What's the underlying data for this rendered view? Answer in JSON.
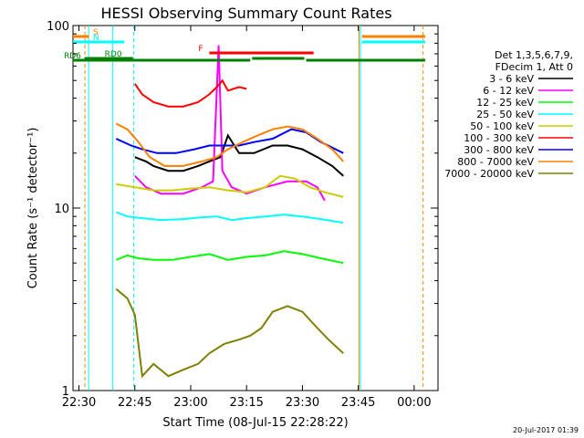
{
  "chart_data": {
    "type": "line",
    "title": "HESSI Observing Summary Count Rates",
    "xlabel": "Start Time (08-Jul-15 22:28:22)",
    "ylabel": "Count Rate (s⁻¹ detector⁻¹)",
    "ylim": [
      1,
      100
    ],
    "yscale": "log",
    "xlim_minutes": [
      -1.6,
      96.4
    ],
    "x_ticks": [
      {
        "label": "22:30",
        "t": 0
      },
      {
        "label": "22:45",
        "t": 15
      },
      {
        "label": "23:00",
        "t": 30
      },
      {
        "label": "23:15",
        "t": 45
      },
      {
        "label": "23:30",
        "t": 60
      },
      {
        "label": "23:45",
        "t": 75
      },
      {
        "label": "00:00",
        "t": 90
      }
    ],
    "y_ticks": [
      {
        "label": "1",
        "v": 1
      },
      {
        "label": "10",
        "v": 10
      },
      {
        "label": "100",
        "v": 100
      }
    ],
    "legend": {
      "header": [
        "Det 1,3,5,6,7,9,",
        "FDecim 1, Att 0"
      ],
      "position": "right"
    },
    "series": [
      {
        "name": "3 - 6 keV",
        "color": "#000000",
        "points": [
          [
            15,
            19
          ],
          [
            18,
            18
          ],
          [
            20,
            17
          ],
          [
            24,
            16
          ],
          [
            28,
            16
          ],
          [
            32,
            17
          ],
          [
            35,
            18
          ],
          [
            38,
            19
          ],
          [
            40,
            25
          ],
          [
            43,
            20
          ],
          [
            47,
            20
          ],
          [
            52,
            22
          ],
          [
            56,
            22
          ],
          [
            60,
            21
          ],
          [
            64,
            19
          ],
          [
            68,
            17
          ],
          [
            71,
            15
          ]
        ]
      },
      {
        "name": "6 - 12 keV",
        "color": "#ff00ff",
        "points": [
          [
            15,
            15
          ],
          [
            18,
            13
          ],
          [
            22,
            12
          ],
          [
            28,
            12
          ],
          [
            33,
            13
          ],
          [
            36,
            14
          ],
          [
            37.5,
            78
          ],
          [
            38.5,
            16
          ],
          [
            41,
            13
          ],
          [
            45,
            12
          ],
          [
            50,
            13
          ],
          [
            56,
            14
          ],
          [
            61,
            14
          ],
          [
            64,
            13
          ],
          [
            66,
            11
          ]
        ]
      },
      {
        "name": "12 - 25 keV",
        "color": "#00ff00",
        "points": [
          [
            10,
            5.2
          ],
          [
            13,
            5.5
          ],
          [
            16,
            5.3
          ],
          [
            20,
            5.2
          ],
          [
            25,
            5.2
          ],
          [
            30,
            5.4
          ],
          [
            35,
            5.6
          ],
          [
            40,
            5.2
          ],
          [
            45,
            5.4
          ],
          [
            50,
            5.5
          ],
          [
            55,
            5.8
          ],
          [
            60,
            5.6
          ],
          [
            65,
            5.3
          ],
          [
            71,
            5.0
          ]
        ]
      },
      {
        "name": "25 - 50 keV",
        "color": "#00ffff",
        "points": [
          [
            10,
            9.5
          ],
          [
            13,
            9.0
          ],
          [
            17,
            8.8
          ],
          [
            22,
            8.6
          ],
          [
            28,
            8.7
          ],
          [
            33,
            8.9
          ],
          [
            37,
            9.0
          ],
          [
            41,
            8.6
          ],
          [
            45,
            8.8
          ],
          [
            50,
            9.0
          ],
          [
            55,
            9.2
          ],
          [
            60,
            9.0
          ],
          [
            65,
            8.7
          ],
          [
            71,
            8.3
          ]
        ]
      },
      {
        "name": "50 - 100 keV",
        "color": "#cccc00",
        "points": [
          [
            10,
            13.5
          ],
          [
            15,
            13
          ],
          [
            20,
            12.5
          ],
          [
            25,
            12.5
          ],
          [
            30,
            12.8
          ],
          [
            35,
            13
          ],
          [
            40,
            12.5
          ],
          [
            45,
            12.2
          ],
          [
            50,
            13
          ],
          [
            54,
            15
          ],
          [
            58,
            14.5
          ],
          [
            62,
            13
          ],
          [
            66,
            12.2
          ],
          [
            71,
            11.5
          ]
        ]
      },
      {
        "name": "100 - 300 keV",
        "color": "#ff0000",
        "points": [
          [
            15,
            48
          ],
          [
            17,
            42
          ],
          [
            20,
            38
          ],
          [
            24,
            36
          ],
          [
            28,
            36
          ],
          [
            32,
            38
          ],
          [
            35,
            42
          ],
          [
            37,
            46
          ],
          [
            38.5,
            50
          ],
          [
            40,
            44
          ],
          [
            43,
            46
          ],
          [
            45,
            45
          ]
        ]
      },
      {
        "name": "300 - 800 keV",
        "color": "#0000ff",
        "points": [
          [
            10,
            24
          ],
          [
            14,
            22
          ],
          [
            17,
            21
          ],
          [
            21,
            20
          ],
          [
            26,
            20
          ],
          [
            31,
            21
          ],
          [
            35,
            22
          ],
          [
            39,
            22
          ],
          [
            43,
            22
          ],
          [
            47,
            23
          ],
          [
            52,
            24
          ],
          [
            57,
            27
          ],
          [
            61,
            26
          ],
          [
            65,
            23
          ],
          [
            71,
            20
          ]
        ]
      },
      {
        "name": "800 - 7000 keV",
        "color": "#ff8000",
        "points": [
          [
            10,
            29
          ],
          [
            13,
            27
          ],
          [
            16,
            23
          ],
          [
            19,
            19
          ],
          [
            23,
            17
          ],
          [
            28,
            17
          ],
          [
            33,
            18
          ],
          [
            37,
            19
          ],
          [
            40,
            21
          ],
          [
            44,
            23
          ],
          [
            48,
            25
          ],
          [
            52,
            27
          ],
          [
            56,
            28
          ],
          [
            60,
            27
          ],
          [
            64,
            24
          ],
          [
            68,
            21
          ],
          [
            71,
            18
          ]
        ]
      },
      {
        "name": "7000 - 20000 keV",
        "color": "#808000",
        "points": [
          [
            10,
            3.6
          ],
          [
            13,
            3.2
          ],
          [
            15,
            2.6
          ],
          [
            17,
            1.2
          ],
          [
            20,
            1.4
          ],
          [
            24,
            1.2
          ],
          [
            28,
            1.3
          ],
          [
            32,
            1.4
          ],
          [
            35,
            1.6
          ],
          [
            39,
            1.8
          ],
          [
            43,
            1.9
          ],
          [
            46,
            2.0
          ],
          [
            49,
            2.2
          ],
          [
            52,
            2.7
          ],
          [
            56,
            2.9
          ],
          [
            60,
            2.7
          ],
          [
            64,
            2.2
          ],
          [
            67,
            1.9
          ],
          [
            71,
            1.6
          ]
        ]
      }
    ],
    "flag_bars": [
      {
        "name": "S",
        "color": "#ff8000",
        "ranges": [
          [
            -1.6,
            2.7
          ],
          [
            76,
            93
          ]
        ]
      },
      {
        "name": "N",
        "color": "#00ffff",
        "ranges": [
          [
            -1.6,
            12.2
          ],
          [
            76,
            93
          ]
        ]
      },
      {
        "name": "F",
        "color": "#ff0000",
        "ranges": [
          [
            35,
            63
          ]
        ]
      },
      {
        "name": "RD0",
        "color": "#008000",
        "ranges": [
          [
            1.5,
            14.5
          ],
          [
            46.5,
            60.5
          ]
        ]
      },
      {
        "name": "RD6",
        "color": "#008000",
        "ranges": [
          [
            -1.6,
            46
          ],
          [
            61,
            93
          ]
        ]
      }
    ],
    "vertical_markers": [
      {
        "t": 1.6,
        "color": "#ff8000",
        "style": "dashed"
      },
      {
        "t": 2.6,
        "color": "#00ffff",
        "style": "solid"
      },
      {
        "t": 9.1,
        "color": "#00ffff",
        "style": "solid"
      },
      {
        "t": 14.7,
        "color": "#00ffff",
        "style": "dashed"
      },
      {
        "t": 75.6,
        "color": "#00ffff",
        "style": "solid"
      },
      {
        "t": 75.2,
        "color": "#ff8000",
        "style": "solid"
      },
      {
        "t": 92.4,
        "color": "#ff8000",
        "style": "dashed"
      }
    ]
  },
  "footer": {
    "timestamp": "20-Jul-2017 01:39"
  }
}
